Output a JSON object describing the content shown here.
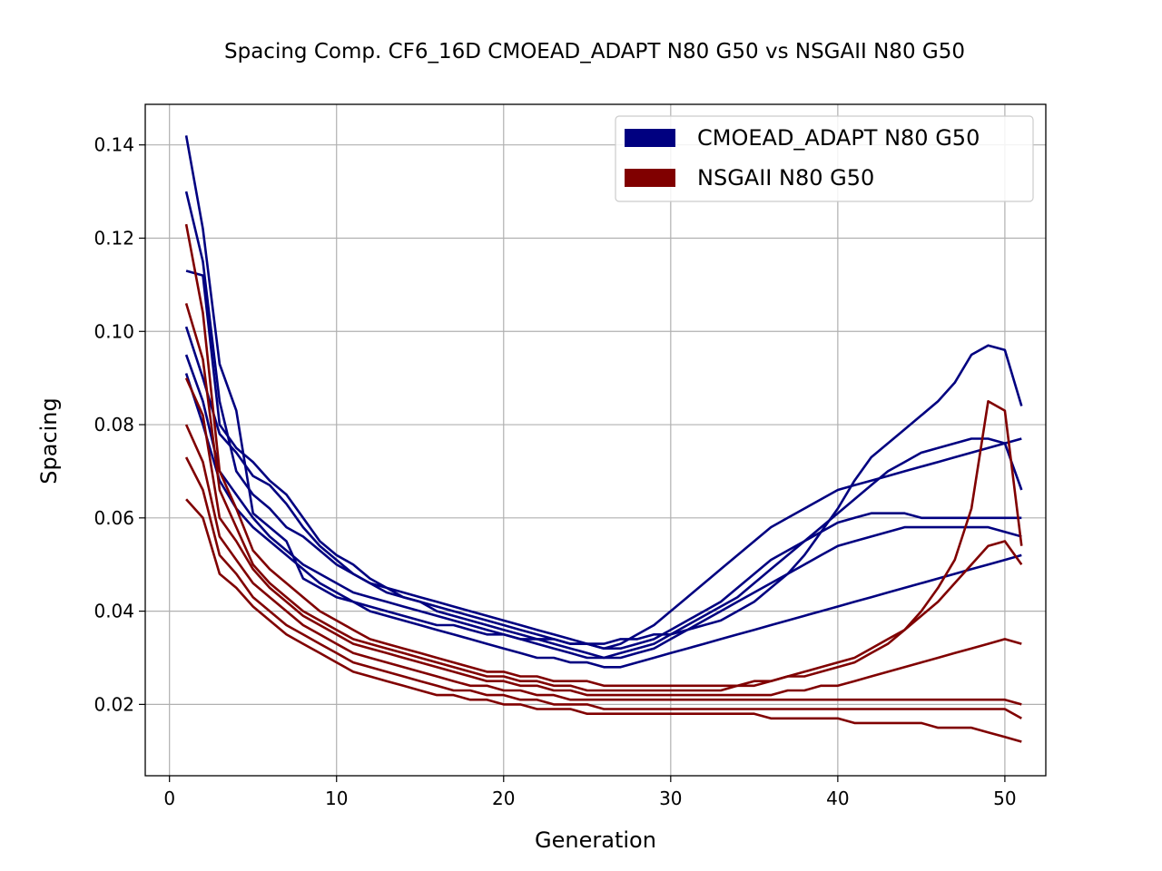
{
  "chart_data": {
    "type": "line",
    "title": "Spacing Comp. CF6_16D CMOEAD_ADAPT N80 G50 vs NSGAII N80 G50",
    "xlabel": "Generation",
    "ylabel": "Spacing",
    "xlim": [
      -1.45,
      52.45
    ],
    "ylim": [
      0.0047,
      0.1487
    ],
    "xticks": [
      0,
      10,
      20,
      30,
      40,
      50
    ],
    "xtick_labels": [
      "0",
      "10",
      "20",
      "30",
      "40",
      "50"
    ],
    "yticks": [
      0.02,
      0.04,
      0.06,
      0.08,
      0.1,
      0.12,
      0.14
    ],
    "ytick_labels": [
      "0.02",
      "0.04",
      "0.06",
      "0.08",
      "0.10",
      "0.12",
      "0.14"
    ],
    "grid": true,
    "legend_position": "top-right",
    "legend": [
      {
        "label": "CMOEAD_ADAPT N80 G50",
        "color": "#000080"
      },
      {
        "label": "NSGAII N80 G50",
        "color": "#800000"
      }
    ],
    "series": [
      {
        "group": "CMOEAD_ADAPT N80 G50",
        "color": "#000080",
        "values": [
          0.142,
          0.122,
          0.093,
          0.083,
          0.061,
          0.058,
          0.055,
          0.047,
          0.045,
          0.043,
          0.042,
          0.041,
          0.04,
          0.039,
          0.038,
          0.037,
          0.037,
          0.036,
          0.035,
          0.035,
          0.034,
          0.034,
          0.034,
          0.033,
          0.033,
          0.033,
          0.034,
          0.034,
          0.035,
          0.035,
          0.036,
          0.037,
          0.038,
          0.04,
          0.042,
          0.045,
          0.048,
          0.052,
          0.057,
          0.062,
          0.068,
          0.073,
          0.076,
          0.079,
          0.082,
          0.085,
          0.089,
          0.095,
          0.097,
          0.096,
          0.084
        ]
      },
      {
        "group": "CMOEAD_ADAPT N80 G50",
        "color": "#000080",
        "values": [
          0.13,
          0.115,
          0.085,
          0.07,
          0.065,
          0.062,
          0.058,
          0.056,
          0.053,
          0.05,
          0.048,
          0.046,
          0.045,
          0.044,
          0.043,
          0.042,
          0.041,
          0.04,
          0.039,
          0.038,
          0.037,
          0.036,
          0.035,
          0.034,
          0.033,
          0.032,
          0.033,
          0.035,
          0.037,
          0.04,
          0.043,
          0.046,
          0.049,
          0.052,
          0.055,
          0.058,
          0.06,
          0.062,
          0.064,
          0.066,
          0.067,
          0.068,
          0.069,
          0.07,
          0.071,
          0.072,
          0.073,
          0.074,
          0.075,
          0.076,
          0.077
        ]
      },
      {
        "group": "CMOEAD_ADAPT N80 G50",
        "color": "#000080",
        "values": [
          0.113,
          0.112,
          0.08,
          0.075,
          0.072,
          0.068,
          0.065,
          0.06,
          0.055,
          0.052,
          0.05,
          0.047,
          0.045,
          0.043,
          0.042,
          0.04,
          0.039,
          0.038,
          0.037,
          0.036,
          0.035,
          0.034,
          0.033,
          0.032,
          0.031,
          0.03,
          0.031,
          0.032,
          0.033,
          0.035,
          0.037,
          0.039,
          0.041,
          0.043,
          0.046,
          0.049,
          0.052,
          0.055,
          0.058,
          0.061,
          0.064,
          0.067,
          0.07,
          0.072,
          0.074,
          0.075,
          0.076,
          0.077,
          0.077,
          0.076,
          0.066
        ]
      },
      {
        "group": "CMOEAD_ADAPT N80 G50",
        "color": "#000080",
        "values": [
          0.101,
          0.09,
          0.078,
          0.074,
          0.069,
          0.067,
          0.063,
          0.058,
          0.054,
          0.051,
          0.048,
          0.046,
          0.044,
          0.043,
          0.042,
          0.041,
          0.04,
          0.039,
          0.038,
          0.037,
          0.036,
          0.035,
          0.034,
          0.033,
          0.033,
          0.032,
          0.032,
          0.033,
          0.034,
          0.036,
          0.038,
          0.04,
          0.042,
          0.045,
          0.048,
          0.051,
          0.053,
          0.055,
          0.057,
          0.059,
          0.06,
          0.061,
          0.061,
          0.061,
          0.06,
          0.06,
          0.06,
          0.06,
          0.06,
          0.06,
          0.06
        ]
      },
      {
        "group": "CMOEAD_ADAPT N80 G50",
        "color": "#000080",
        "values": [
          0.095,
          0.085,
          0.07,
          0.065,
          0.06,
          0.056,
          0.053,
          0.05,
          0.048,
          0.046,
          0.044,
          0.043,
          0.042,
          0.041,
          0.04,
          0.039,
          0.038,
          0.037,
          0.036,
          0.035,
          0.034,
          0.033,
          0.032,
          0.031,
          0.03,
          0.03,
          0.03,
          0.031,
          0.032,
          0.034,
          0.036,
          0.038,
          0.04,
          0.042,
          0.044,
          0.046,
          0.048,
          0.05,
          0.052,
          0.054,
          0.055,
          0.056,
          0.057,
          0.058,
          0.058,
          0.058,
          0.058,
          0.058,
          0.058,
          0.057,
          0.056
        ]
      },
      {
        "group": "CMOEAD_ADAPT N80 G50",
        "color": "#000080",
        "values": [
          0.091,
          0.08,
          0.068,
          0.062,
          0.058,
          0.055,
          0.052,
          0.049,
          0.046,
          0.044,
          0.042,
          0.04,
          0.039,
          0.038,
          0.037,
          0.036,
          0.035,
          0.034,
          0.033,
          0.032,
          0.031,
          0.03,
          0.03,
          0.029,
          0.029,
          0.028,
          0.028,
          0.029,
          0.03,
          0.031,
          0.032,
          0.033,
          0.034,
          0.035,
          0.036,
          0.037,
          0.038,
          0.039,
          0.04,
          0.041,
          0.042,
          0.043,
          0.044,
          0.045,
          0.046,
          0.047,
          0.048,
          0.049,
          0.05,
          0.051,
          0.052
        ]
      },
      {
        "group": "NSGAII N80 G50",
        "color": "#800000",
        "values": [
          0.123,
          0.104,
          0.07,
          0.062,
          0.053,
          0.049,
          0.046,
          0.043,
          0.04,
          0.038,
          0.036,
          0.034,
          0.033,
          0.032,
          0.031,
          0.03,
          0.029,
          0.028,
          0.027,
          0.027,
          0.026,
          0.026,
          0.025,
          0.025,
          0.025,
          0.024,
          0.024,
          0.024,
          0.024,
          0.024,
          0.024,
          0.024,
          0.024,
          0.024,
          0.025,
          0.025,
          0.026,
          0.026,
          0.027,
          0.028,
          0.029,
          0.031,
          0.033,
          0.036,
          0.04,
          0.045,
          0.051,
          0.062,
          0.085,
          0.083,
          0.054
        ]
      },
      {
        "group": "NSGAII N80 G50",
        "color": "#800000",
        "values": [
          0.106,
          0.094,
          0.066,
          0.058,
          0.05,
          0.046,
          0.043,
          0.04,
          0.038,
          0.036,
          0.034,
          0.033,
          0.032,
          0.031,
          0.03,
          0.029,
          0.028,
          0.027,
          0.026,
          0.026,
          0.025,
          0.025,
          0.024,
          0.024,
          0.023,
          0.023,
          0.023,
          0.023,
          0.023,
          0.023,
          0.023,
          0.023,
          0.023,
          0.024,
          0.024,
          0.025,
          0.026,
          0.027,
          0.028,
          0.029,
          0.03,
          0.032,
          0.034,
          0.036,
          0.039,
          0.042,
          0.046,
          0.05,
          0.054,
          0.055,
          0.05
        ]
      },
      {
        "group": "NSGAII N80 G50",
        "color": "#800000",
        "values": [
          0.09,
          0.082,
          0.06,
          0.055,
          0.049,
          0.045,
          0.042,
          0.039,
          0.037,
          0.035,
          0.033,
          0.032,
          0.031,
          0.03,
          0.029,
          0.028,
          0.027,
          0.026,
          0.025,
          0.025,
          0.024,
          0.024,
          0.023,
          0.023,
          0.022,
          0.022,
          0.022,
          0.022,
          0.022,
          0.022,
          0.022,
          0.022,
          0.022,
          0.022,
          0.022,
          0.022,
          0.023,
          0.023,
          0.024,
          0.024,
          0.025,
          0.026,
          0.027,
          0.028,
          0.029,
          0.03,
          0.031,
          0.032,
          0.033,
          0.034,
          0.033
        ]
      },
      {
        "group": "NSGAII N80 G50",
        "color": "#800000",
        "values": [
          0.08,
          0.072,
          0.056,
          0.051,
          0.046,
          0.043,
          0.04,
          0.037,
          0.035,
          0.033,
          0.031,
          0.03,
          0.029,
          0.028,
          0.027,
          0.026,
          0.025,
          0.024,
          0.024,
          0.023,
          0.023,
          0.022,
          0.022,
          0.021,
          0.021,
          0.021,
          0.021,
          0.021,
          0.021,
          0.021,
          0.021,
          0.021,
          0.021,
          0.021,
          0.021,
          0.021,
          0.021,
          0.021,
          0.021,
          0.021,
          0.021,
          0.021,
          0.021,
          0.021,
          0.021,
          0.021,
          0.021,
          0.021,
          0.021,
          0.021,
          0.02
        ]
      },
      {
        "group": "NSGAII N80 G50",
        "color": "#800000",
        "values": [
          0.073,
          0.066,
          0.052,
          0.048,
          0.043,
          0.04,
          0.037,
          0.035,
          0.033,
          0.031,
          0.029,
          0.028,
          0.027,
          0.026,
          0.025,
          0.024,
          0.023,
          0.023,
          0.022,
          0.022,
          0.021,
          0.021,
          0.02,
          0.02,
          0.02,
          0.019,
          0.019,
          0.019,
          0.019,
          0.019,
          0.019,
          0.019,
          0.019,
          0.019,
          0.019,
          0.019,
          0.019,
          0.019,
          0.019,
          0.019,
          0.019,
          0.019,
          0.019,
          0.019,
          0.019,
          0.019,
          0.019,
          0.019,
          0.019,
          0.019,
          0.017
        ]
      },
      {
        "group": "NSGAII N80 G50",
        "color": "#800000",
        "values": [
          0.064,
          0.06,
          0.048,
          0.045,
          0.041,
          0.038,
          0.035,
          0.033,
          0.031,
          0.029,
          0.027,
          0.026,
          0.025,
          0.024,
          0.023,
          0.022,
          0.022,
          0.021,
          0.021,
          0.02,
          0.02,
          0.019,
          0.019,
          0.019,
          0.018,
          0.018,
          0.018,
          0.018,
          0.018,
          0.018,
          0.018,
          0.018,
          0.018,
          0.018,
          0.018,
          0.017,
          0.017,
          0.017,
          0.017,
          0.017,
          0.016,
          0.016,
          0.016,
          0.016,
          0.016,
          0.015,
          0.015,
          0.015,
          0.014,
          0.013,
          0.012
        ]
      }
    ]
  }
}
